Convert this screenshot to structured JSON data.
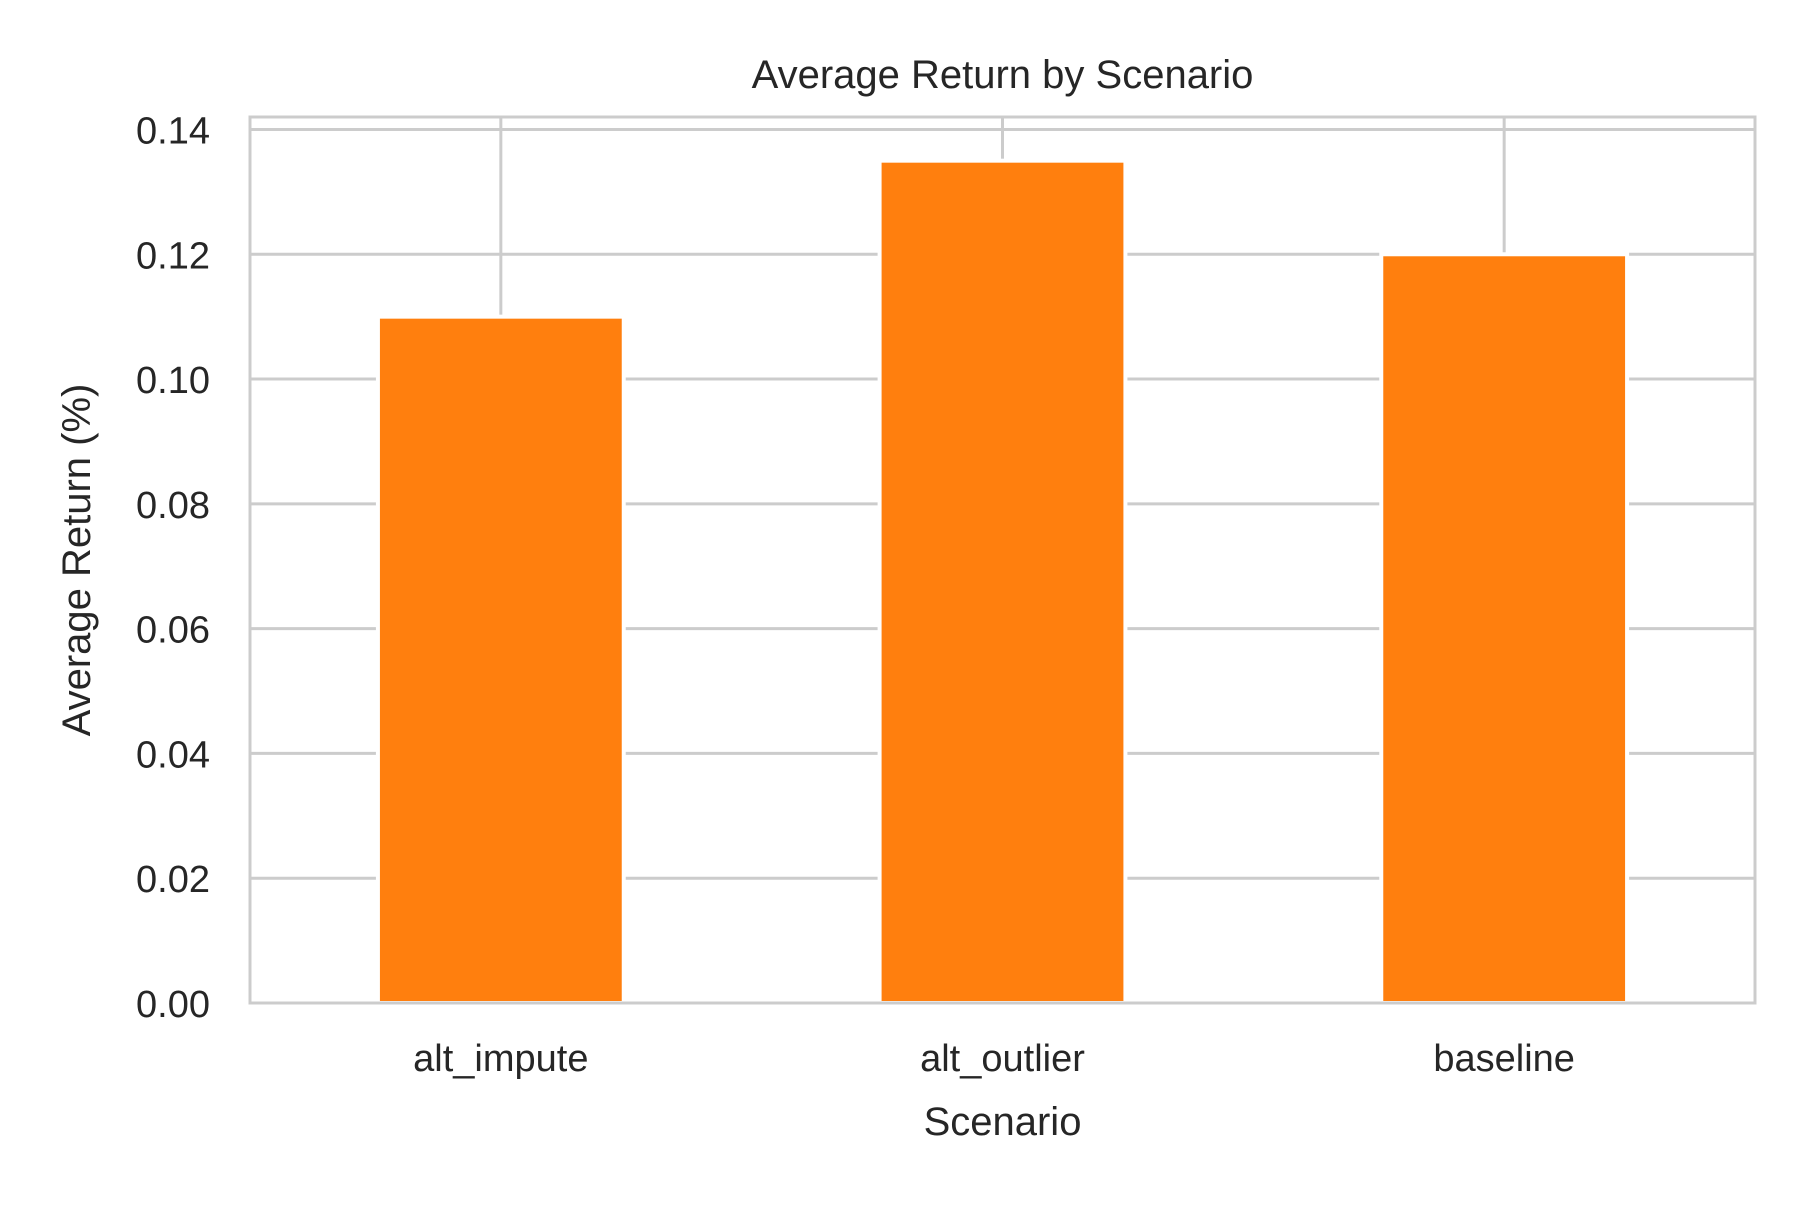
{
  "chart_data": {
    "type": "bar",
    "title": "Average Return by Scenario",
    "xlabel": "Scenario",
    "ylabel": "Average Return (%)",
    "categories": [
      "alt_impute",
      "alt_outlier",
      "baseline"
    ],
    "values": [
      0.11,
      0.135,
      0.12
    ],
    "ylim": [
      0,
      0.142
    ],
    "yticks": [
      0.0,
      0.02,
      0.04,
      0.06,
      0.08,
      0.1,
      0.12,
      0.14
    ],
    "ytick_labels": [
      "0.00",
      "0.02",
      "0.04",
      "0.06",
      "0.08",
      "0.10",
      "0.12",
      "0.14"
    ],
    "grid": true,
    "legend": false,
    "colors": {
      "bar": "#ff7f0e",
      "grid": "#cccccc",
      "axes": "#cccccc",
      "text": "#262626"
    }
  }
}
